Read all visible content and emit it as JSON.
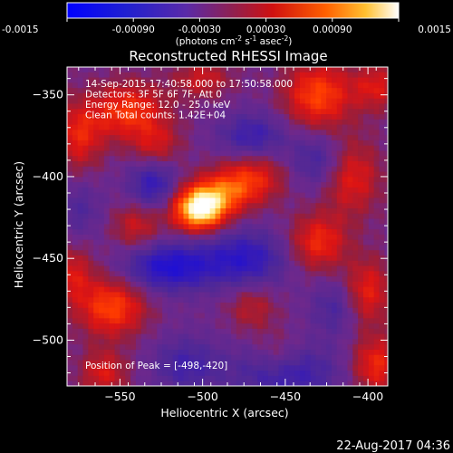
{
  "colorbar": {
    "ticks": [
      "-0.0015",
      "-0.00090",
      "-0.00030",
      "0.00030",
      "0.00090",
      "0.0015"
    ],
    "tick_values": [
      -0.0015,
      -0.0009,
      -0.0003,
      0.0003,
      0.0009,
      0.0015
    ],
    "unit_main": "(photons cm",
    "unit_exp1": "-2",
    "unit_mid": " s",
    "unit_exp2": "-1",
    "unit_tail": " asec",
    "unit_exp3": "-2",
    "unit_close": ")",
    "range": [
      -0.0015,
      0.0015
    ]
  },
  "chart_data": {
    "type": "heatmap",
    "title": "Reconstructed RHESSI Image",
    "xlabel": "Heliocentric X (arcsec)",
    "ylabel": "Heliocentric Y (arcsec)",
    "xlim": [
      -582,
      -388
    ],
    "ylim": [
      -528,
      -333
    ],
    "xticks": [
      -550,
      -500,
      -450,
      -400
    ],
    "yticks": [
      -500,
      -450,
      -400,
      -350
    ],
    "annotations": [
      "14-Sep-2015 17:40:58.000 to 17:50:58.000",
      "Detectors: 3F 5F 6F 7F, Att 0",
      "Energy Range: 12.0 - 25.0 keV",
      "Clean     Total counts: 1.42E+04"
    ],
    "peak_label": "Position of Peak = [-498,-420]",
    "peak": [
      -498,
      -420
    ],
    "colors": {
      "low": "#0000ff",
      "mid_low": "#6a2ea6",
      "mid": "#a01818",
      "high": "#ff0000",
      "peak": "#ffffff"
    }
  },
  "footer": {
    "timestamp": "22-Aug-2017 04:36"
  }
}
